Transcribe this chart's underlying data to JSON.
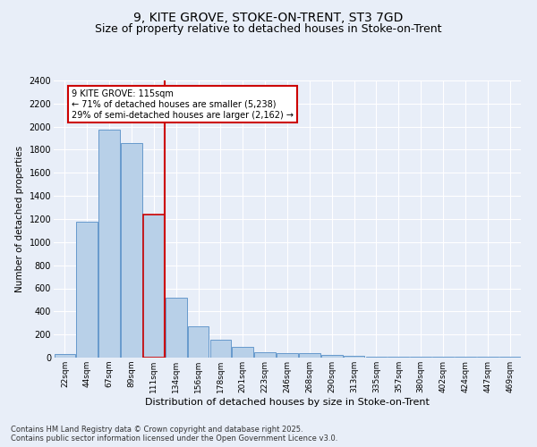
{
  "title_line1": "9, KITE GROVE, STOKE-ON-TRENT, ST3 7GD",
  "title_line2": "Size of property relative to detached houses in Stoke-on-Trent",
  "xlabel": "Distribution of detached houses by size in Stoke-on-Trent",
  "ylabel": "Number of detached properties",
  "categories": [
    "22sqm",
    "44sqm",
    "67sqm",
    "89sqm",
    "111sqm",
    "134sqm",
    "156sqm",
    "178sqm",
    "201sqm",
    "223sqm",
    "246sqm",
    "268sqm",
    "290sqm",
    "313sqm",
    "335sqm",
    "357sqm",
    "380sqm",
    "402sqm",
    "424sqm",
    "447sqm",
    "469sqm"
  ],
  "values": [
    30,
    1175,
    1975,
    1855,
    1240,
    515,
    270,
    155,
    90,
    50,
    40,
    35,
    20,
    15,
    5,
    5,
    5,
    5,
    5,
    5,
    5
  ],
  "bar_color": "#b8d0e8",
  "bar_edge_color": "#6699cc",
  "highlight_bar_index": 4,
  "highlight_bar_color": "#b8d0e8",
  "highlight_bar_edge_color": "#cc0000",
  "vline_color": "#cc0000",
  "annotation_text": "9 KITE GROVE: 115sqm\n← 71% of detached houses are smaller (5,238)\n29% of semi-detached houses are larger (2,162) →",
  "annotation_box_color": "#ffffff",
  "annotation_box_edge_color": "#cc0000",
  "footer_line1": "Contains HM Land Registry data © Crown copyright and database right 2025.",
  "footer_line2": "Contains public sector information licensed under the Open Government Licence v3.0.",
  "ylim": [
    0,
    2400
  ],
  "bg_color": "#e8eef8",
  "plot_bg_color": "#e8eef8",
  "grid_color": "#ffffff",
  "title_fontsize": 10,
  "subtitle_fontsize": 9
}
